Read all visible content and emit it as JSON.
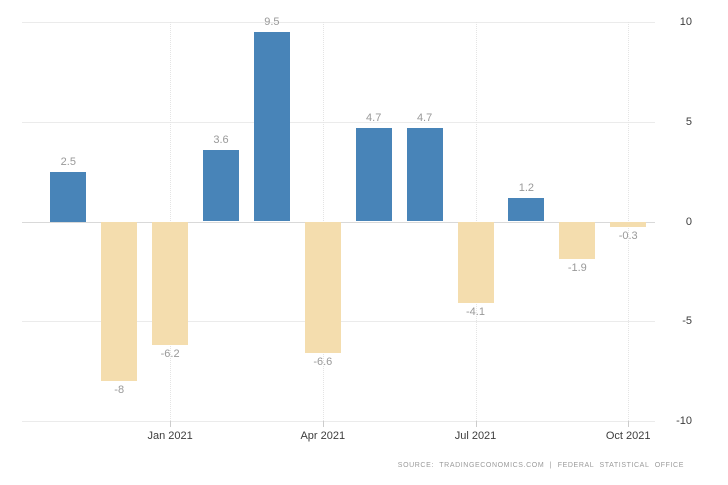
{
  "chart_data": {
    "type": "bar",
    "title": "",
    "xlabel": "",
    "ylabel": "",
    "values": [
      2.5,
      -8,
      -6.2,
      3.6,
      9.5,
      -6.6,
      4.7,
      4.7,
      -4.1,
      1.2,
      -1.9,
      -0.3
    ],
    "value_labels": [
      "2.5",
      "-8",
      "-6.2",
      "3.6",
      "9.5",
      "-6.6",
      "4.7",
      "4.7",
      "-4.1",
      "1.2",
      "-1.9",
      "-0.3"
    ],
    "x_tick_labels": [
      "Jan 2021",
      "Apr 2021",
      "Jul 2021",
      "Oct 2021"
    ],
    "x_tick_bar_indexes": [
      2,
      5,
      8,
      11
    ],
    "y_tick_labels": [
      "10",
      "5",
      "0",
      "-5",
      "-10"
    ],
    "y_tick_values": [
      10,
      5,
      0,
      -5,
      -10
    ],
    "ylim": [
      -10,
      10
    ],
    "grid": "on",
    "legend": "none"
  },
  "colors": {
    "positive_bar": "#4884b8",
    "negative_bar": "#f4ddae",
    "gridline": "#ebebeb",
    "zero_line": "#d9d9d9",
    "value_label": "#999999",
    "axis_label": "#3d3d3d",
    "source_text": "#9a9a9a",
    "background": "#ffffff"
  },
  "footer": {
    "source_text": "SOURCE: TRADINGECONOMICS.COM | FEDERAL STATISTICAL OFFICE"
  }
}
